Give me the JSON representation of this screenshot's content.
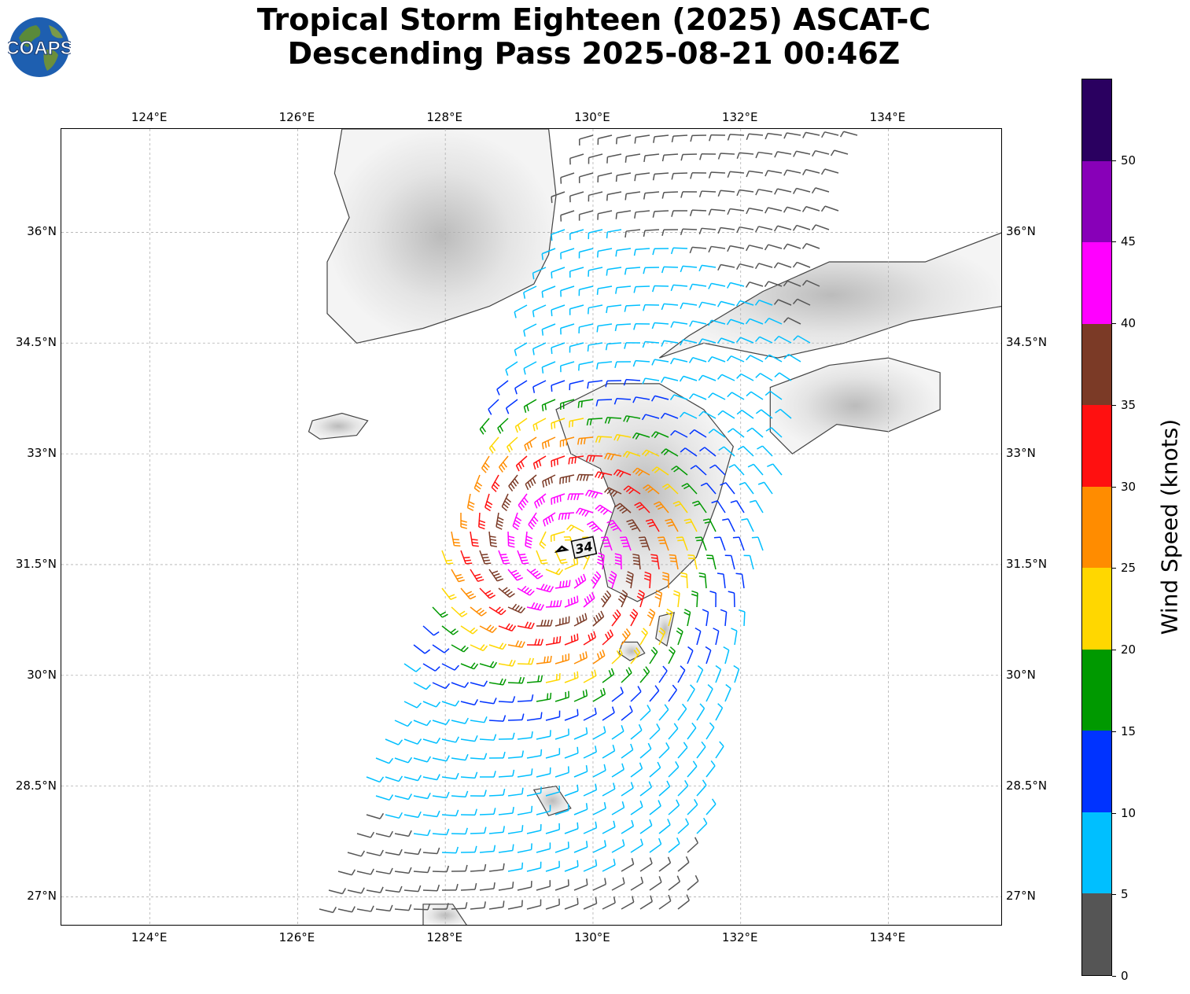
{
  "title": {
    "line1": "Tropical Storm Eighteen (2025) ASCAT-C",
    "line2": "Descending Pass 2025-08-21 00:46Z"
  },
  "logo": {
    "text": "COAPS",
    "icon": "globe-icon"
  },
  "map": {
    "lon_range": [
      122.8,
      135.55
    ],
    "lat_range": [
      26.6,
      37.4
    ],
    "lon_ticks": [
      "124°E",
      "126°E",
      "128°E",
      "130°E",
      "132°E",
      "134°E"
    ],
    "lat_ticks": [
      "27°N",
      "28.5°N",
      "30°N",
      "31.5°N",
      "33°N",
      "34.5°N",
      "36°N"
    ],
    "gridlines": true,
    "storm_center_label": "34",
    "coastline_color": "#444444",
    "land_shading": "grayscale-terrain"
  },
  "colorbar": {
    "title": "Wind Speed (knots)",
    "tick_labels": [
      "0",
      "5",
      "10",
      "15",
      "20",
      "25",
      "30",
      "35",
      "40",
      "45",
      "50"
    ],
    "colors": [
      "#555555",
      "#00bfff",
      "#0033ff",
      "#009900",
      "#ffd700",
      "#ff8c00",
      "#ff1010",
      "#7b3a26",
      "#ff00ff",
      "#8800b8",
      "#2a0060"
    ]
  }
}
